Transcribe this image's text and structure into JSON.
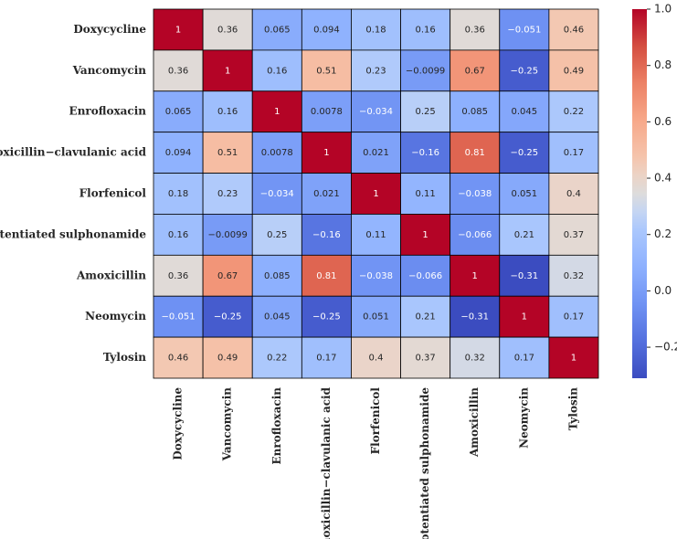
{
  "chart_data": {
    "type": "heatmap",
    "x": [
      "Doxycycline",
      "Vancomycin",
      "Enrofloxacin",
      "Amoxicillin−clavulanic acid",
      "Florfenicol",
      "Potentiated sulphonamide",
      "Amoxicillin",
      "Neomycin",
      "Tylosin"
    ],
    "y": [
      "Doxycycline",
      "Vancomycin",
      "Enrofloxacin",
      "Amoxicillin−clavulanic acid",
      "Florfenicol",
      "Potentiated sulphonamide",
      "Amoxicillin",
      "Neomycin",
      "Tylosin"
    ],
    "values": [
      [
        1,
        0.36,
        0.065,
        0.094,
        0.18,
        0.16,
        0.36,
        -0.051,
        0.46
      ],
      [
        0.36,
        1,
        0.16,
        0.51,
        0.23,
        -0.0099,
        0.67,
        -0.25,
        0.49
      ],
      [
        0.065,
        0.16,
        1,
        0.0078,
        -0.034,
        0.25,
        0.085,
        0.045,
        0.22
      ],
      [
        0.094,
        0.51,
        0.0078,
        1,
        0.021,
        -0.16,
        0.81,
        -0.25,
        0.17
      ],
      [
        0.18,
        0.23,
        -0.034,
        0.021,
        1,
        0.11,
        -0.038,
        0.051,
        0.4
      ],
      [
        0.16,
        -0.0099,
        0.25,
        -0.16,
        0.11,
        1,
        -0.066,
        0.21,
        0.37
      ],
      [
        0.36,
        0.67,
        0.085,
        0.81,
        -0.038,
        -0.066,
        1,
        -0.31,
        0.32
      ],
      [
        -0.051,
        -0.25,
        0.045,
        -0.25,
        0.051,
        0.21,
        -0.31,
        1,
        0.17
      ],
      [
        0.46,
        0.49,
        0.22,
        0.17,
        0.4,
        0.37,
        0.32,
        0.17,
        1
      ]
    ],
    "value_labels": [
      [
        "1",
        "0.36",
        "0.065",
        "0.094",
        "0.18",
        "0.16",
        "0.36",
        "−0.051",
        "0.46"
      ],
      [
        "0.36",
        "1",
        "0.16",
        "0.51",
        "0.23",
        "−0.0099",
        "0.67",
        "−0.25",
        "0.49"
      ],
      [
        "0.065",
        "0.16",
        "1",
        "0.0078",
        "−0.034",
        "0.25",
        "0.085",
        "0.045",
        "0.22"
      ],
      [
        "0.094",
        "0.51",
        "0.0078",
        "1",
        "0.021",
        "−0.16",
        "0.81",
        "−0.25",
        "0.17"
      ],
      [
        "0.18",
        "0.23",
        "−0.034",
        "0.021",
        "1",
        "0.11",
        "−0.038",
        "0.051",
        "0.4"
      ],
      [
        "0.16",
        "−0.0099",
        "0.25",
        "−0.16",
        "0.11",
        "1",
        "−0.066",
        "0.21",
        "0.37"
      ],
      [
        "0.36",
        "0.67",
        "0.085",
        "0.81",
        "−0.038",
        "−0.066",
        "1",
        "−0.31",
        "0.32"
      ],
      [
        "−0.051",
        "−0.25",
        "0.045",
        "−0.25",
        "0.051",
        "0.21",
        "−0.31",
        "1",
        "0.17"
      ],
      [
        "0.46",
        "0.49",
        "0.22",
        "0.17",
        "0.4",
        "0.37",
        "0.32",
        "0.17",
        "1"
      ]
    ],
    "colormap": "coolwarm",
    "zlim": [
      -0.31,
      1
    ],
    "zticks": [
      {
        "value": -0.2,
        "label": "−0.2"
      },
      {
        "value": 0,
        "label": "0.0"
      },
      0.2,
      0.4,
      0.6,
      0.8,
      {
        "value": 1,
        "label": "1.0"
      }
    ]
  }
}
